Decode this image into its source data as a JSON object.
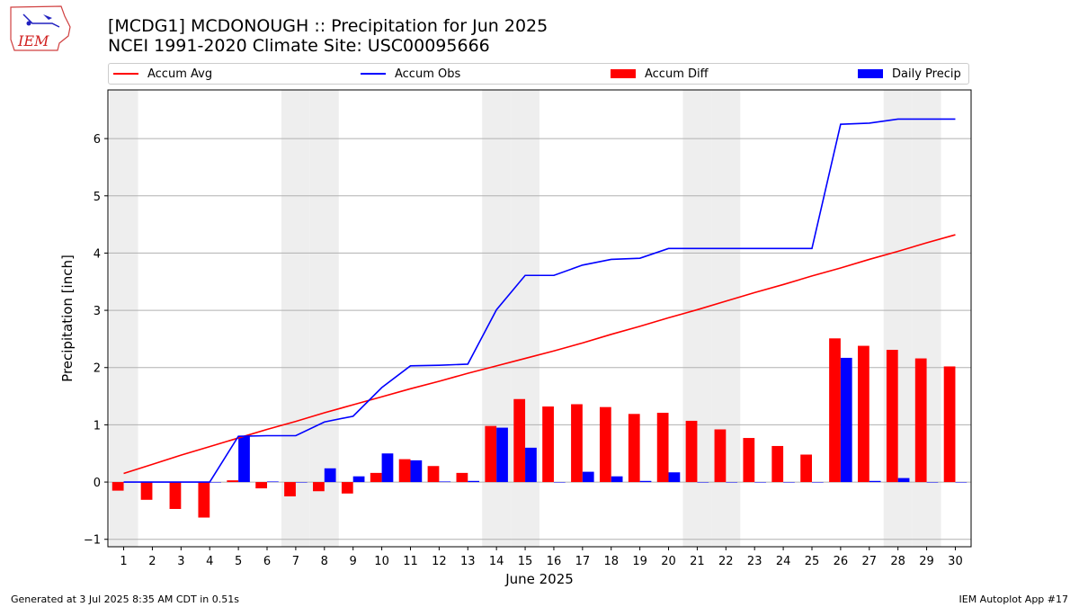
{
  "header": {
    "title_line1": "[MCDG1] MCDONOUGH :: Precipitation for Jun 2025",
    "title_line2": "NCEI 1991-2020 Climate Site: USC00095666"
  },
  "logo": {
    "text": "IEM",
    "icon": "iowa-state-outline-logo"
  },
  "footer": {
    "left": "Generated at 3 Jul 2025 8:35 AM CDT in 0.51s",
    "right": "IEM Autoplot App #17"
  },
  "colors": {
    "avg": "#ff0000",
    "obs": "#0000ff",
    "diff": "#ff0000",
    "daily": "#0000ff",
    "weekend_shade": "#eeeeee",
    "grid": "#b0b0b0"
  },
  "legend": [
    {
      "label": "Accum Avg",
      "kind": "line",
      "color": "#ff0000"
    },
    {
      "label": "Accum Obs",
      "kind": "line",
      "color": "#0000ff"
    },
    {
      "label": "Accum Diff",
      "kind": "bar",
      "color": "#ff0000"
    },
    {
      "label": "Daily Precip",
      "kind": "bar",
      "color": "#0000ff"
    }
  ],
  "chart_data": {
    "type": "bar",
    "title": "[MCDG1] MCDONOUGH :: Precipitation for Jun 2025",
    "subtitle": "NCEI 1991-2020 Climate Site: USC00095666",
    "xlabel": "June 2025",
    "ylabel": "Precipitation [inch]",
    "ylim": [
      -1.13,
      6.85
    ],
    "yticks": [
      -1,
      0,
      1,
      2,
      3,
      4,
      5,
      6
    ],
    "grid": "horizontal",
    "legend_position": "top",
    "categories": [
      "1",
      "2",
      "3",
      "4",
      "5",
      "6",
      "7",
      "8",
      "9",
      "10",
      "11",
      "12",
      "13",
      "14",
      "15",
      "16",
      "17",
      "18",
      "19",
      "20",
      "21",
      "22",
      "23",
      "24",
      "25",
      "26",
      "27",
      "28",
      "29",
      "30"
    ],
    "shaded_weekend_days": [
      1,
      7,
      8,
      14,
      15,
      21,
      22,
      28,
      29
    ],
    "series": [
      {
        "name": "Accum Avg",
        "type": "line",
        "values": [
          0.15,
          0.31,
          0.47,
          0.62,
          0.77,
          0.92,
          1.06,
          1.21,
          1.35,
          1.49,
          1.63,
          1.76,
          1.9,
          2.03,
          2.16,
          2.29,
          2.43,
          2.58,
          2.72,
          2.87,
          3.01,
          3.16,
          3.31,
          3.45,
          3.6,
          3.74,
          3.89,
          4.03,
          4.18,
          4.32
        ]
      },
      {
        "name": "Accum Obs",
        "type": "line",
        "values": [
          0.0,
          0.0,
          0.0,
          0.0,
          0.8,
          0.81,
          0.81,
          1.05,
          1.15,
          1.65,
          2.03,
          2.04,
          2.06,
          3.01,
          3.61,
          3.61,
          3.79,
          3.89,
          3.91,
          4.08,
          4.08,
          4.08,
          4.08,
          4.08,
          4.08,
          6.25,
          6.27,
          6.34,
          6.34,
          6.34
        ]
      },
      {
        "name": "Accum Diff",
        "type": "bar",
        "values": [
          -0.15,
          -0.31,
          -0.47,
          -0.62,
          0.03,
          -0.11,
          -0.25,
          -0.16,
          -0.2,
          0.16,
          0.4,
          0.28,
          0.16,
          0.98,
          1.45,
          1.32,
          1.36,
          1.31,
          1.19,
          1.21,
          1.07,
          0.92,
          0.77,
          0.63,
          0.48,
          2.51,
          2.38,
          2.31,
          2.16,
          2.02
        ]
      },
      {
        "name": "Daily Precip",
        "type": "bar",
        "values": [
          0,
          0,
          0,
          0,
          0.8,
          0.01,
          0,
          0.24,
          0.1,
          0.5,
          0.38,
          0.01,
          0.02,
          0.95,
          0.6,
          0,
          0.18,
          0.1,
          0.02,
          0.17,
          0,
          0,
          0,
          0,
          0,
          2.17,
          0.02,
          0.07,
          0,
          0
        ]
      }
    ]
  }
}
